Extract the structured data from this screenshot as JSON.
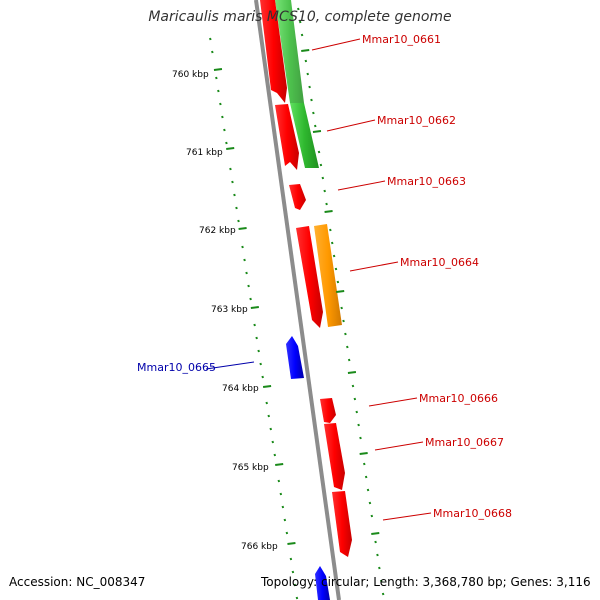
{
  "title": "Maricaulis maris MCS10, complete genome",
  "footer": {
    "accession": "Accession: NC_008347",
    "topology": "Topology: circular; Length: 3,368,780 bp; Genes: 3,116"
  },
  "colors": {
    "backbone": "#8c8c8c",
    "tick": "#1a8a1a",
    "cds_forward": "#ff0000",
    "cds_reverse": "#0000ff",
    "rna_green": "#33cc33",
    "feature_orange": "#ff9900",
    "label_forward": "#cc0000",
    "label_reverse": "#0000aa"
  },
  "scale_labels": [
    "760 kbp",
    "761 kbp",
    "762 kbp",
    "763 kbp",
    "764 kbp",
    "765 kbp",
    "766 kbp"
  ],
  "gene_labels": [
    {
      "text": "Mmar10_0661",
      "strand": "forward"
    },
    {
      "text": "Mmar10_0662",
      "strand": "forward"
    },
    {
      "text": "Mmar10_0663",
      "strand": "forward"
    },
    {
      "text": "Mmar10_0664",
      "strand": "forward"
    },
    {
      "text": "Mmar10_0665",
      "strand": "reverse"
    },
    {
      "text": "Mmar10_0666",
      "strand": "forward"
    },
    {
      "text": "Mmar10_0667",
      "strand": "forward"
    },
    {
      "text": "Mmar10_0668",
      "strand": "forward"
    }
  ]
}
